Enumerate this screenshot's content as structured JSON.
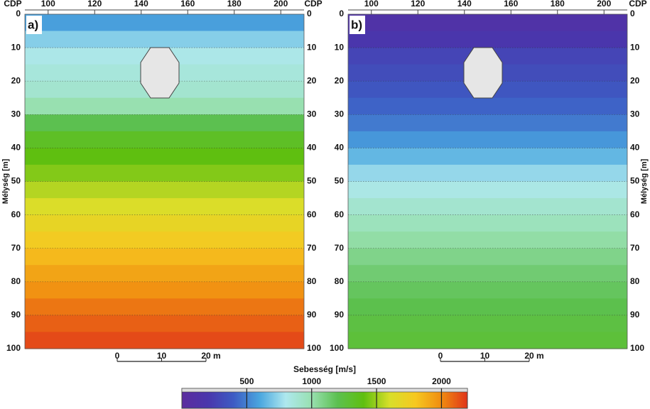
{
  "chart_data": [
    {
      "type": "heatmap",
      "label": "a)",
      "x_label": "CDP",
      "y_label": "Mélység [m]",
      "xlim": [
        90,
        210
      ],
      "xticks": [
        100,
        120,
        140,
        160,
        180,
        200
      ],
      "ylim": [
        0,
        100
      ],
      "yticks": [
        0,
        10,
        20,
        30,
        40,
        50,
        60,
        70,
        80,
        90,
        100
      ],
      "grid": true,
      "depth": [
        0,
        5,
        10,
        15,
        20,
        25,
        30,
        35,
        40,
        45,
        50,
        55,
        60,
        65,
        70,
        75,
        80,
        85,
        90,
        95
      ],
      "velocity": [
        580,
        720,
        820,
        860,
        900,
        1000,
        1200,
        1330,
        1400,
        1460,
        1540,
        1620,
        1700,
        1770,
        1850,
        1920,
        1980,
        2050,
        2100,
        2150
      ],
      "scale_bar": {
        "ticks": [
          0,
          10,
          20
        ],
        "unit": "m"
      }
    },
    {
      "type": "heatmap",
      "label": "b)",
      "x_label": "CDP",
      "y_label": "Mélység [m]",
      "xlim": [
        90,
        210
      ],
      "xticks": [
        100,
        120,
        140,
        160,
        180,
        200
      ],
      "ylim": [
        0,
        100
      ],
      "yticks": [
        0,
        10,
        20,
        30,
        40,
        50,
        60,
        70,
        80,
        90,
        100
      ],
      "grid": true,
      "depth": [
        0,
        5,
        10,
        15,
        20,
        25,
        30,
        35,
        40,
        45,
        50,
        55,
        60,
        65,
        70,
        75,
        80,
        85,
        90,
        95
      ],
      "velocity": [
        130,
        200,
        280,
        320,
        370,
        420,
        480,
        560,
        650,
        750,
        830,
        900,
        960,
        1020,
        1080,
        1130,
        1170,
        1210,
        1240,
        1270
      ],
      "scale_bar": {
        "ticks": [
          0,
          10,
          20
        ],
        "unit": "m"
      }
    }
  ],
  "colorbar": {
    "label": "Sebesség [m/s]",
    "clim": [
      0,
      2200
    ],
    "ticks": [
      500,
      1000,
      1500,
      2000
    ],
    "colors": [
      "#5b2c9e",
      "#4a36ac",
      "#3d5cc4",
      "#4aa6df",
      "#aee8ee",
      "#98e0b0",
      "#5cc050",
      "#5fbf10",
      "#d8df2a",
      "#f6c820",
      "#f08c10",
      "#e0341a"
    ]
  }
}
